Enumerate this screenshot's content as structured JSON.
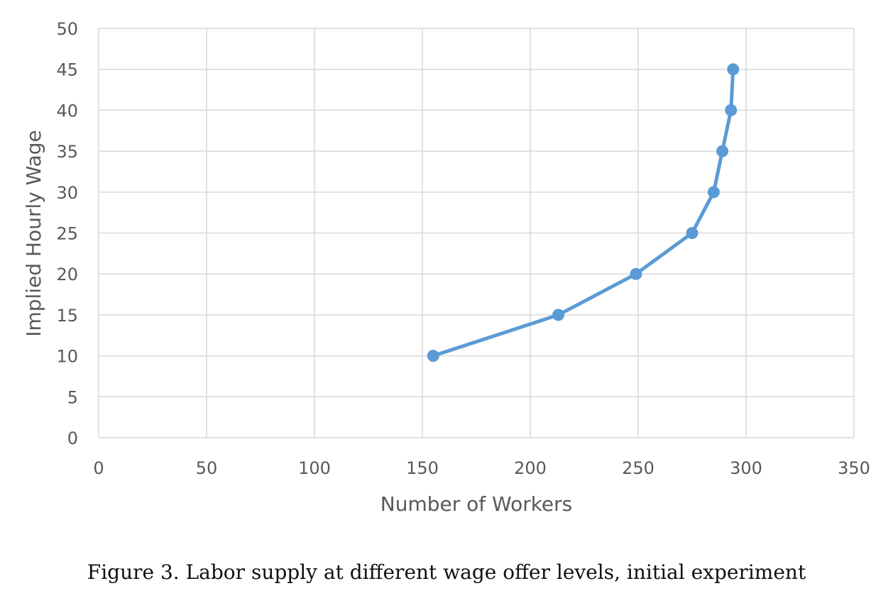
{
  "chart_data": {
    "type": "line",
    "xlabel": "Number of Workers",
    "ylabel": "Implied Hourly Wage",
    "xlim": [
      0,
      350
    ],
    "ylim": [
      0,
      50
    ],
    "x_ticks": [
      0,
      50,
      100,
      150,
      200,
      250,
      300,
      350
    ],
    "y_ticks": [
      0,
      5,
      10,
      15,
      20,
      25,
      30,
      35,
      40,
      45,
      50
    ],
    "grid": true,
    "legend": "none",
    "series_color": "#5b9bd5",
    "series": [
      {
        "points": [
          {
            "x": 155,
            "y": 10
          },
          {
            "x": 213,
            "y": 15
          },
          {
            "x": 249,
            "y": 20
          },
          {
            "x": 275,
            "y": 25
          },
          {
            "x": 285,
            "y": 30
          },
          {
            "x": 289,
            "y": 35
          },
          {
            "x": 293,
            "y": 40
          },
          {
            "x": 294,
            "y": 45
          }
        ]
      }
    ]
  },
  "figure": {
    "caption": "Figure 3. Labor supply at different wage offer levels, initial experiment"
  }
}
